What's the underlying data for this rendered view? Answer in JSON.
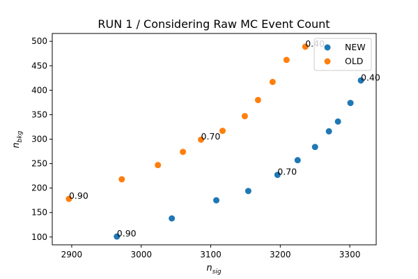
{
  "chart_data": {
    "type": "scatter",
    "title": "RUN 1 / Considering Raw MC Event Count",
    "xlabel": {
      "base": "n",
      "sub": "sig"
    },
    "ylabel": {
      "base": "n",
      "sub": "bkg"
    },
    "xlim": [
      2872,
      3338
    ],
    "ylim": [
      84,
      516
    ],
    "xticks": [
      2900,
      3000,
      3100,
      3200,
      3300
    ],
    "yticks": [
      100,
      150,
      200,
      250,
      300,
      350,
      400,
      450,
      500
    ],
    "grid": false,
    "legend": "top-right",
    "series": [
      {
        "name": "NEW",
        "color": "#1f77b4",
        "points": [
          [
            2965,
            101
          ],
          [
            3044,
            138
          ],
          [
            3108,
            175
          ],
          [
            3154,
            194
          ],
          [
            3196,
            227
          ],
          [
            3225,
            257
          ],
          [
            3250,
            284
          ],
          [
            3270,
            316
          ],
          [
            3283,
            336
          ],
          [
            3301,
            374
          ],
          [
            3316,
            420
          ]
        ]
      },
      {
        "name": "OLD",
        "color": "#ff7f0e",
        "points": [
          [
            2896,
            178
          ],
          [
            2972,
            218
          ],
          [
            3024,
            247
          ],
          [
            3060,
            274
          ],
          [
            3086,
            299
          ],
          [
            3117,
            317
          ],
          [
            3149,
            347
          ],
          [
            3168,
            380
          ],
          [
            3189,
            417
          ],
          [
            3209,
            462
          ],
          [
            3236,
            489
          ]
        ]
      }
    ],
    "annotations": [
      {
        "text": "0.90",
        "x": 2965,
        "y": 101
      },
      {
        "text": "0.70",
        "x": 3196,
        "y": 227
      },
      {
        "text": "0.40",
        "x": 3316,
        "y": 420
      },
      {
        "text": "0.90",
        "x": 2896,
        "y": 178
      },
      {
        "text": "0.70",
        "x": 3086,
        "y": 299
      },
      {
        "text": "0.40",
        "x": 3236,
        "y": 489
      }
    ]
  }
}
